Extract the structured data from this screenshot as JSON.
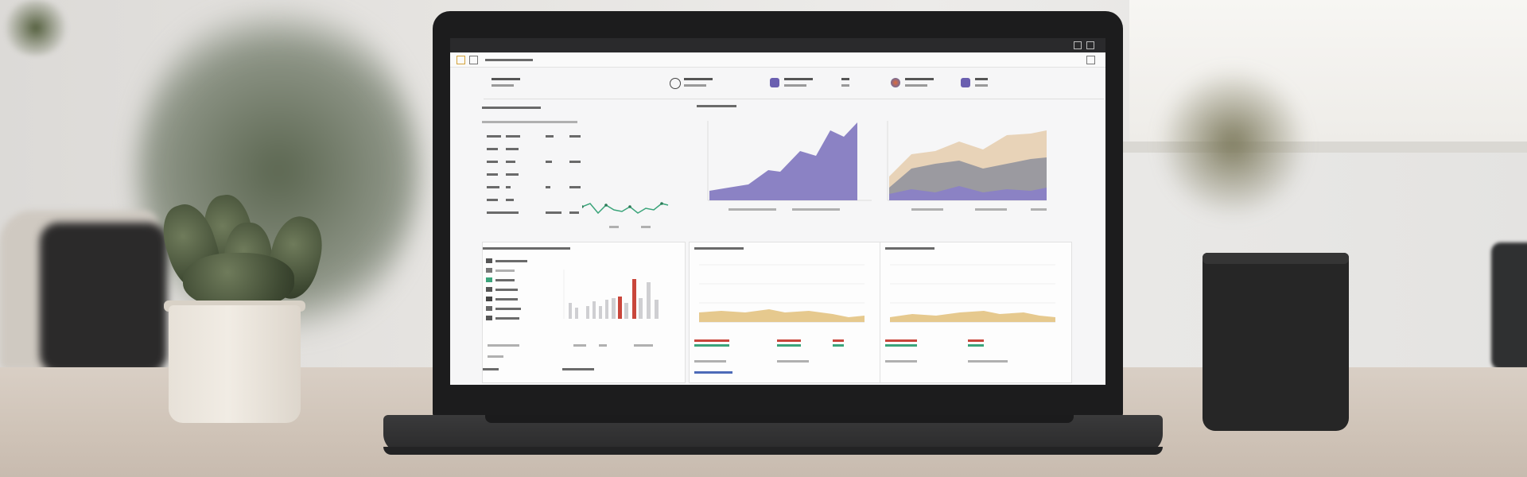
{
  "laptop": {
    "brand": ""
  },
  "screen": {
    "window_title": "",
    "panels": {
      "top_left": {
        "title": ""
      },
      "top_middle": {
        "title": ""
      },
      "bottom_left": {
        "title": ""
      },
      "bottom_middle": {
        "title": ""
      },
      "bottom_right": {
        "title": ""
      }
    },
    "colors": {
      "area_purple": "#8b82c4",
      "area_tan": "#e8d3b8",
      "area_gray": "#9b9aa0",
      "area_yellow": "#e6c98e",
      "bar_red": "#c9463b",
      "bar_gray": "#cfcfd2",
      "line_green": "#3aa47a"
    }
  },
  "icons": [
    "pencil-icon",
    "folder-icon",
    "user-icon",
    "globe-icon",
    "lock-icon",
    "refresh-icon"
  ]
}
